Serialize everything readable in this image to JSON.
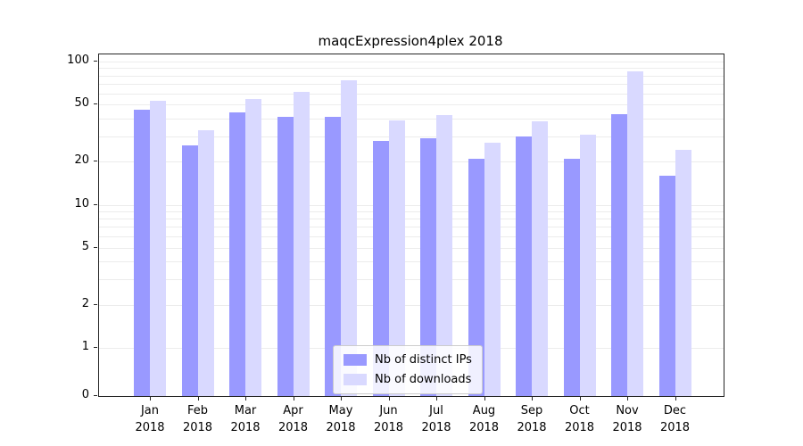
{
  "chart_data": {
    "type": "bar",
    "title": "maqcExpression4plex 2018",
    "x_months": [
      "Jan",
      "Feb",
      "Mar",
      "Apr",
      "May",
      "Jun",
      "Jul",
      "Aug",
      "Sep",
      "Oct",
      "Nov",
      "Dec"
    ],
    "x_year": "2018",
    "series": [
      {
        "key": "distinct-ips",
        "name": "Nb of distinct IPs",
        "color": "#9999ff",
        "values": [
          46,
          26,
          44,
          41,
          41,
          28,
          29,
          21,
          30,
          21,
          43,
          16
        ]
      },
      {
        "key": "downloads",
        "name": "Nb of downloads",
        "color": "#d9d9ff",
        "values": [
          53,
          33,
          55,
          61,
          74,
          39,
          42,
          27,
          38,
          31,
          85,
          24
        ]
      }
    ],
    "yscale": "symlog",
    "ylim": [
      0,
      100
    ],
    "yticks": [
      0,
      1,
      2,
      5,
      10,
      20,
      50,
      100
    ],
    "grid": "horizontal-log-minor",
    "legend_position": "lower-center"
  }
}
